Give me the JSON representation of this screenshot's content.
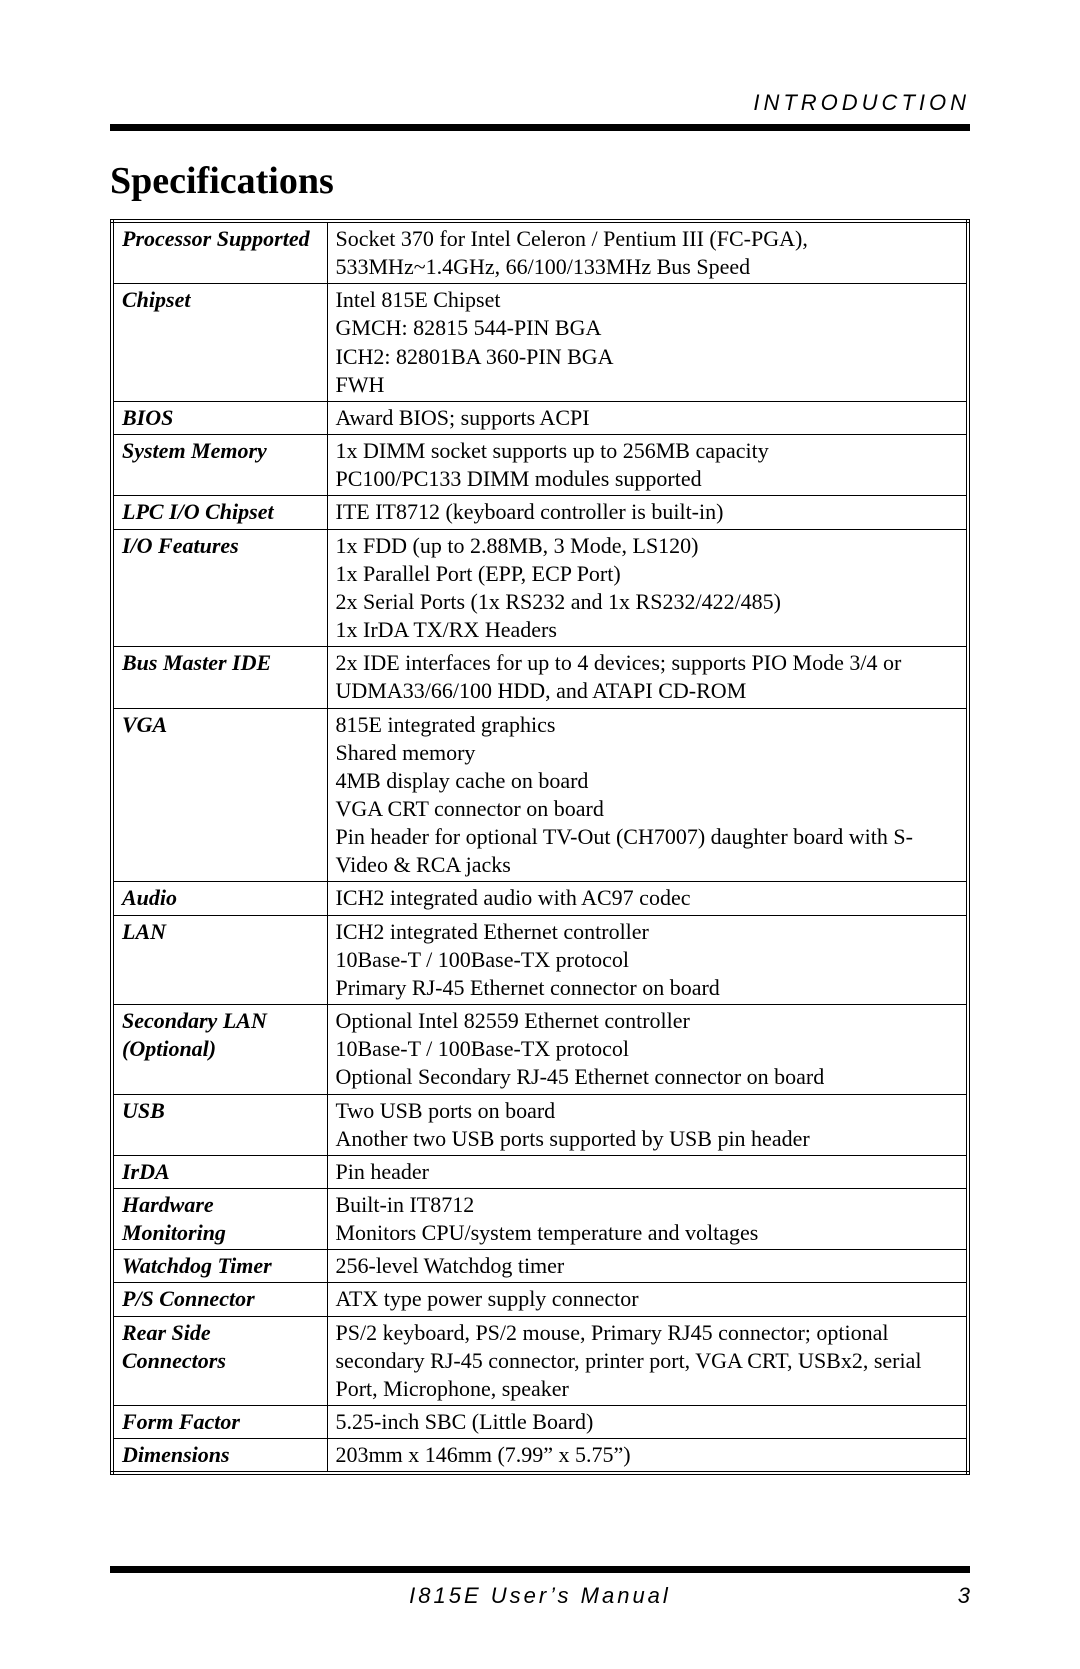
{
  "header": {
    "section_label": "INTRODUCTION"
  },
  "title": "Specifications",
  "table": {
    "rows": [
      {
        "label": "Processor Supported",
        "value": "Socket 370 for Intel Celeron / Pentium III (FC-PGA), 533MHz~1.4GHz, 66/100/133MHz Bus Speed"
      },
      {
        "label": "Chipset",
        "value": "Intel 815E Chipset\nGMCH: 82815 544-PIN BGA\nICH2: 82801BA 360-PIN BGA\nFWH"
      },
      {
        "label": "BIOS",
        "value": "Award BIOS; supports ACPI"
      },
      {
        "label": "System Memory",
        "value": "1x DIMM socket supports up to 256MB capacity\nPC100/PC133 DIMM modules supported"
      },
      {
        "label": "LPC I/O Chipset",
        "value": "ITE IT8712 (keyboard controller is built-in)"
      },
      {
        "label": "I/O Features",
        "value": "1x FDD (up to 2.88MB, 3 Mode, LS120)\n1x Parallel Port (EPP, ECP Port)\n2x Serial Ports (1x RS232 and 1x RS232/422/485)\n1x IrDA TX/RX Headers"
      },
      {
        "label": "Bus Master IDE",
        "value": "2x IDE interfaces for up to 4 devices; supports PIO Mode 3/4 or UDMA33/66/100 HDD, and ATAPI CD-ROM"
      },
      {
        "label": "VGA",
        "value": "815E integrated graphics\nShared memory\n4MB display cache on board\nVGA CRT connector on board\nPin header for optional TV-Out (CH7007) daughter board with S-Video & RCA jacks"
      },
      {
        "label": "Audio",
        "value": "ICH2 integrated audio with AC97 codec"
      },
      {
        "label": "LAN",
        "value": "ICH2 integrated Ethernet controller\n10Base-T / 100Base-TX protocol\nPrimary RJ-45 Ethernet connector on board"
      },
      {
        "label": "Secondary LAN (Optional)",
        "value": "Optional Intel 82559 Ethernet controller\n10Base-T / 100Base-TX protocol\nOptional Secondary RJ-45 Ethernet connector on board"
      },
      {
        "label": "USB",
        "value": "Two USB ports on board\nAnother two USB ports supported by USB pin header"
      },
      {
        "label": "IrDA",
        "value": "Pin header"
      },
      {
        "label": "Hardware Monitoring",
        "value": "Built-in IT8712\nMonitors CPU/system temperature and voltages"
      },
      {
        "label": "Watchdog Timer",
        "value": "256-level Watchdog timer"
      },
      {
        "label": "P/S Connector",
        "value": "ATX type power supply connector"
      },
      {
        "label": "Rear Side Connectors",
        "value": "PS/2 keyboard, PS/2 mouse, Primary RJ45 connector; optional secondary RJ-45 connector, printer port, VGA CRT, USBx2, serial Port, Microphone, speaker"
      },
      {
        "label": "Form Factor",
        "value": "5.25-inch SBC (Little Board)"
      },
      {
        "label": "Dimensions",
        "value": "203mm x 146mm (7.99” x 5.75”)"
      }
    ]
  },
  "footer": {
    "manual_title": "I815E User’s Manual",
    "page_number": "3"
  },
  "colors": {
    "background": "#ffffff",
    "text": "#000000",
    "rule": "#000000",
    "border": "#000000"
  }
}
